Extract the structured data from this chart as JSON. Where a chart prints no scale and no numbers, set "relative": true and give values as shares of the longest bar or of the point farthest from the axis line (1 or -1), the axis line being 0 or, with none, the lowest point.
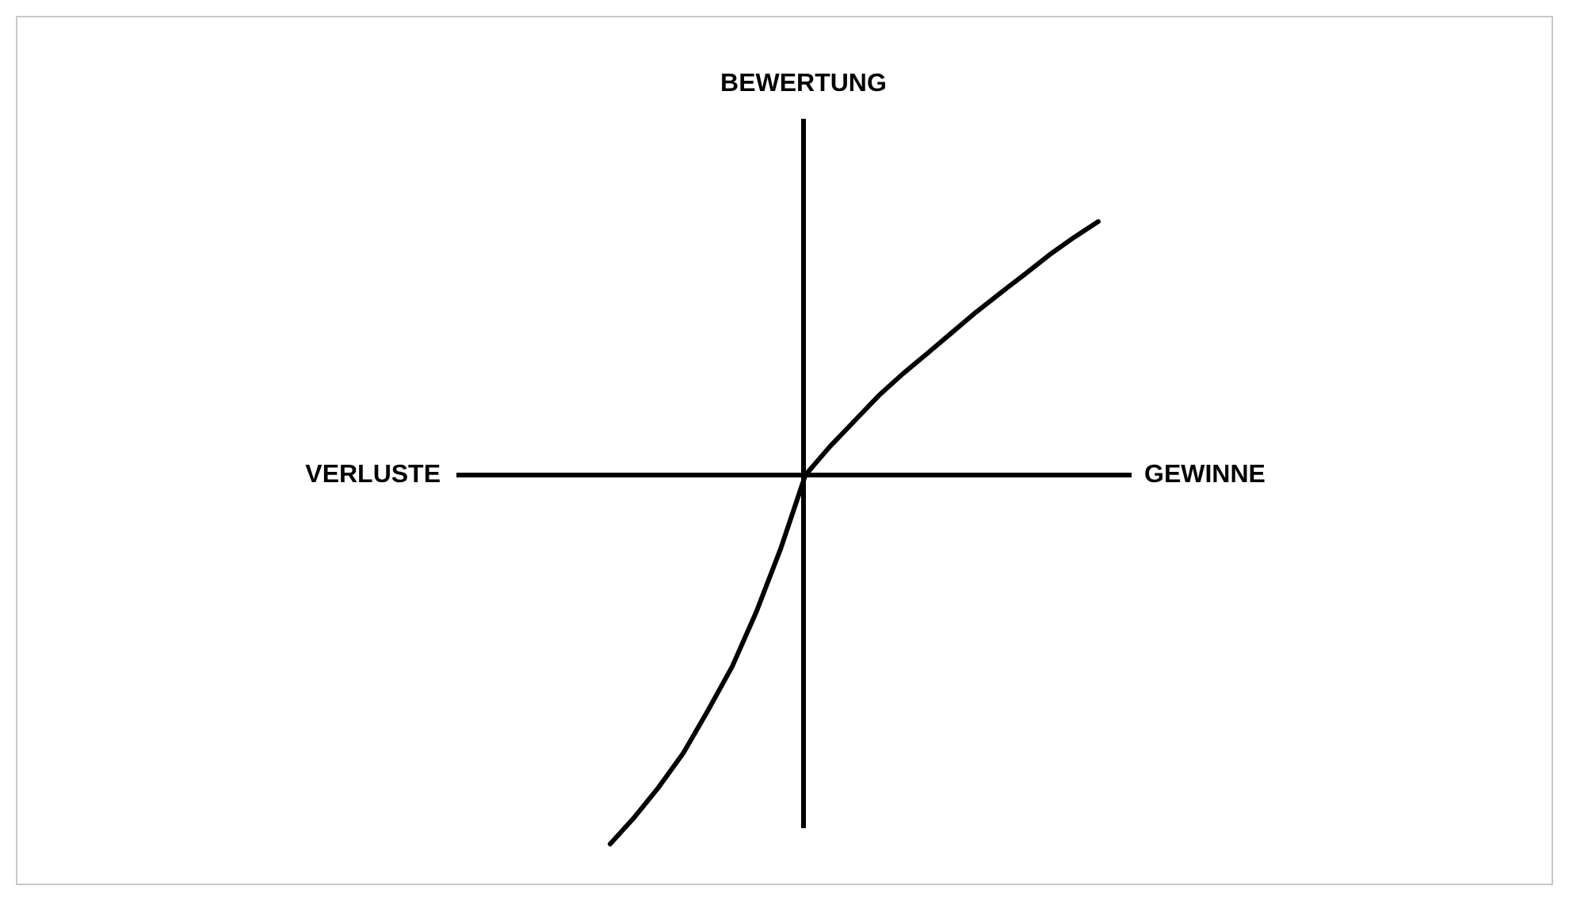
{
  "chart_data": {
    "type": "line",
    "relative": true,
    "xlabel": "GEWINNE",
    "ylabel": "BEWERTUNG",
    "annotations": [
      "VERLUSTE"
    ],
    "marker": "none",
    "line_style": "solid",
    "categories": [
      null,
      null,
      null,
      null,
      null,
      null,
      null,
      null,
      null,
      null,
      null,
      null,
      null,
      null,
      null,
      null,
      null,
      null,
      null,
      null,
      null
    ],
    "series": [
      {
        "color": "#000000",
        "values": [
          -1,
          -0.927,
          -0.845,
          -0.753,
          -0.639,
          -0.519,
          -0.369,
          -0.197,
          0,
          0.077,
          0.146,
          0.215,
          0.275,
          0.33,
          0.386,
          0.442,
          0.494,
          0.545,
          0.597,
          0.644,
          0.687
        ]
      }
    ]
  }
}
